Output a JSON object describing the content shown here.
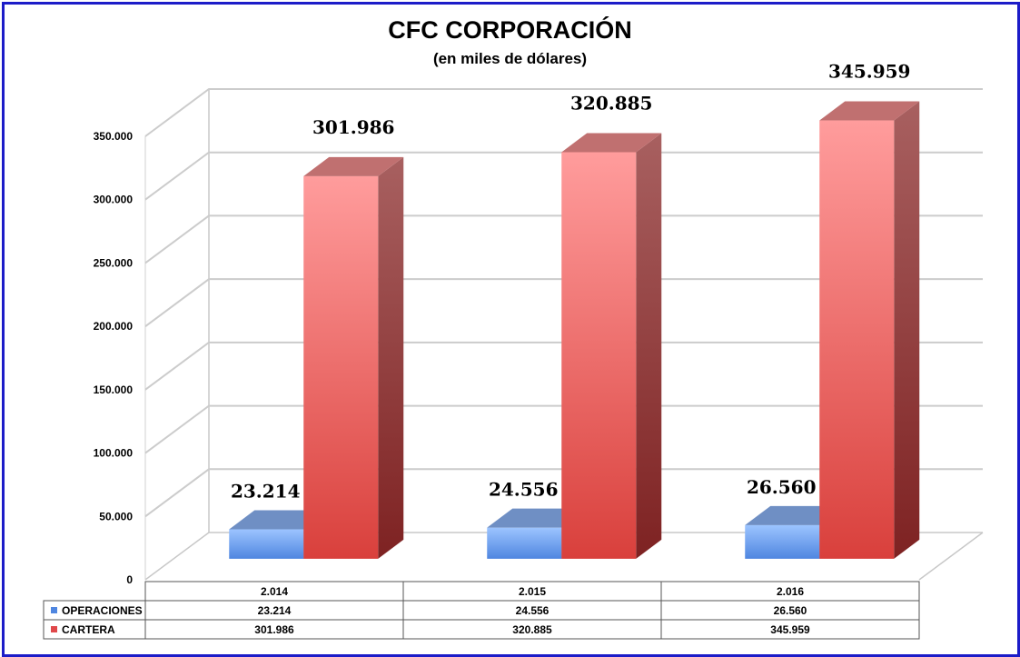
{
  "chart_data": {
    "type": "bar",
    "title": "CFC CORPORACIÓN",
    "subtitle": "(en miles de dólares)",
    "categories": [
      "2.014",
      "2.015",
      "2.016"
    ],
    "series": [
      {
        "name": "OPERACIONES",
        "values": [
          23214,
          24556,
          26560
        ],
        "labels": [
          "23.214",
          "24.556",
          "26.560"
        ],
        "color": "#4f86e0"
      },
      {
        "name": "CARTERA",
        "values": [
          301986,
          320885,
          345959
        ],
        "labels": [
          "301.986",
          "320.885",
          "345.959"
        ],
        "color": "#e0484a"
      }
    ],
    "ylim": [
      0,
      350000
    ],
    "yticks": [
      0,
      50000,
      100000,
      150000,
      200000,
      250000,
      300000,
      350000
    ],
    "ytick_labels": [
      "0",
      "50.000",
      "100.000",
      "150.000",
      "200.000",
      "250.000",
      "300.000",
      "350.000"
    ],
    "grid": true,
    "legend": "data-table"
  }
}
